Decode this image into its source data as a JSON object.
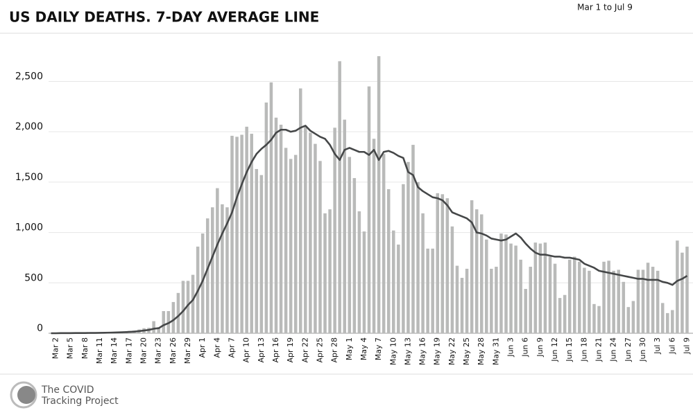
{
  "chart_data": {
    "type": "bar_line",
    "title": "US DAILY DEATHS. 7-DAY AVERAGE LINE",
    "subtitle": "Mar 1 to Jul 9",
    "categories": [
      null,
      "Mar 2",
      null,
      null,
      "Mar 5",
      null,
      null,
      "Mar 8",
      null,
      null,
      "Mar 11",
      null,
      null,
      "Mar 14",
      null,
      null,
      "Mar 17",
      null,
      null,
      "Mar 20",
      null,
      null,
      "Mar 23",
      null,
      null,
      "Mar 26",
      null,
      null,
      "Mar 29",
      null,
      null,
      "Apr 1",
      null,
      null,
      "Apr 4",
      null,
      null,
      "Apr 7",
      null,
      null,
      "Apr 10",
      null,
      null,
      "Apr 13",
      null,
      null,
      "Apr 16",
      null,
      null,
      "Apr 19",
      null,
      null,
      "Apr 22",
      null,
      null,
      "Apr 25",
      null,
      null,
      "Apr 28",
      null,
      null,
      "May 1",
      null,
      null,
      "May 4",
      null,
      null,
      "May 7",
      null,
      null,
      "May 10",
      null,
      null,
      "May 13",
      null,
      null,
      "May 16",
      null,
      null,
      "May 19",
      null,
      null,
      "May 22",
      null,
      null,
      "May 25",
      null,
      null,
      "May 28",
      null,
      null,
      "May 31",
      null,
      null,
      "Jun 3",
      null,
      null,
      "Jun 6",
      null,
      null,
      "Jun 9",
      null,
      null,
      "Jun 12",
      null,
      null,
      "Jun 15",
      null,
      null,
      "Jun 18",
      null,
      null,
      "Jun 21",
      null,
      null,
      "Jun 24",
      null,
      null,
      "Jun 27",
      null,
      null,
      "Jun 30",
      null,
      null,
      "Jul 3",
      null,
      null,
      "Jul 6",
      null,
      null,
      "Jul 9"
    ],
    "bars": {
      "color": "#b9bab9",
      "values": [
        0,
        1,
        1,
        2,
        2,
        2,
        2,
        4,
        4,
        5,
        7,
        6,
        12,
        10,
        16,
        18,
        23,
        27,
        37,
        50,
        54,
        120,
        60,
        220,
        220,
        310,
        400,
        520,
        520,
        580,
        860,
        990,
        1140,
        1250,
        1440,
        1280,
        1250,
        1960,
        1950,
        1970,
        2050,
        1980,
        1630,
        1570,
        2290,
        2490,
        2140,
        2070,
        1840,
        1730,
        1770,
        2430,
        2060,
        1990,
        1880,
        1710,
        1190,
        1230,
        2040,
        2700,
        2120,
        1750,
        1540,
        1210,
        1010,
        2450,
        1930,
        2750,
        1780,
        1430,
        1020,
        880,
        1480,
        1700,
        1870,
        1500,
        1190,
        840,
        840,
        1390,
        1380,
        1340,
        1060,
        670,
        550,
        640,
        1320,
        1230,
        1180,
        930,
        640,
        660,
        990,
        980,
        890,
        870,
        730,
        440,
        660,
        900,
        890,
        900,
        760,
        690,
        350,
        380,
        730,
        760,
        710,
        650,
        620,
        290,
        270,
        710,
        720,
        620,
        630,
        510,
        260,
        320,
        630,
        630,
        700,
        660,
        620,
        300,
        200,
        230,
        920,
        800,
        860
      ]
    },
    "line": {
      "color": "#454748",
      "values": [
        0,
        0,
        1,
        1,
        1,
        2,
        2,
        2,
        3,
        3,
        4,
        5,
        6,
        7,
        9,
        11,
        13,
        16,
        21,
        27,
        33,
        45,
        50,
        80,
        100,
        130,
        170,
        220,
        280,
        330,
        420,
        520,
        640,
        760,
        880,
        990,
        1090,
        1200,
        1350,
        1480,
        1600,
        1700,
        1780,
        1830,
        1870,
        1920,
        1990,
        2020,
        2020,
        2000,
        2010,
        2040,
        2060,
        2010,
        1980,
        1950,
        1930,
        1870,
        1780,
        1720,
        1820,
        1840,
        1820,
        1800,
        1800,
        1770,
        1820,
        1720,
        1800,
        1810,
        1790,
        1760,
        1740,
        1600,
        1570,
        1450,
        1410,
        1380,
        1350,
        1340,
        1320,
        1270,
        1200,
        1180,
        1160,
        1140,
        1100,
        1000,
        990,
        970,
        940,
        930,
        920,
        930,
        960,
        990,
        950,
        890,
        840,
        800,
        780,
        780,
        770,
        760,
        760,
        750,
        750,
        740,
        730,
        690,
        670,
        650,
        620,
        610,
        600,
        590,
        580,
        570,
        560,
        550,
        540,
        540,
        530,
        530,
        530,
        510,
        500,
        480,
        520,
        540,
        570
      ]
    },
    "ylim": [
      0,
      2950
    ],
    "yticks": [
      0,
      500,
      {
        "value": 1000,
        "label": "1,000"
      },
      {
        "value": 1500,
        "label": "1,500"
      },
      {
        "value": 2000,
        "label": "2,000"
      },
      {
        "value": 2500,
        "label": "2,500"
      }
    ],
    "grid": true
  },
  "footer": {
    "lines": [
      "The COVID",
      "Tracking Project"
    ]
  }
}
